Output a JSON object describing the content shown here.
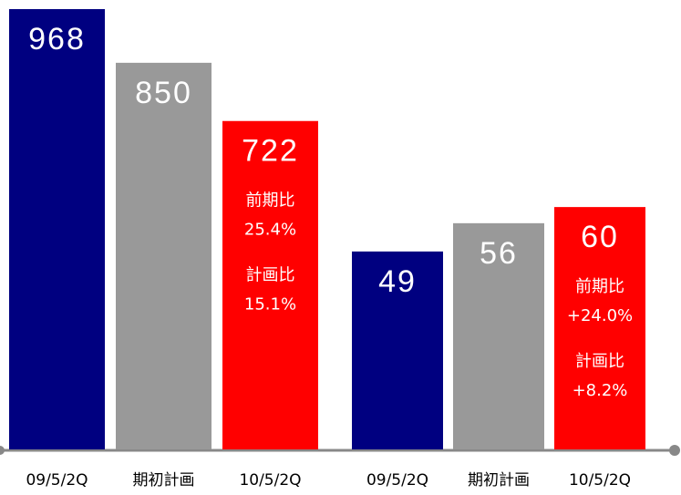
{
  "chart_data": [
    {
      "type": "bar",
      "categories": [
        "09/5/2Q",
        "期初計画",
        "10/5/2Q"
      ],
      "values": [
        968,
        850,
        722
      ],
      "colors": [
        "#000080",
        "#999999",
        "#ff0000"
      ],
      "ylim": [
        0,
        968
      ],
      "annotations": [
        "前期比",
        "25.4%",
        "計画比",
        "15.1%"
      ]
    },
    {
      "type": "bar",
      "categories": [
        "09/5/2Q",
        "期初計画",
        "10/5/2Q"
      ],
      "values": [
        49,
        56,
        60
      ],
      "colors": [
        "#000080",
        "#999999",
        "#ff0000"
      ],
      "ylim": [
        0,
        109
      ],
      "annotations": [
        "前期比",
        "+24.0%",
        "計画比",
        "+8.2%"
      ]
    }
  ]
}
